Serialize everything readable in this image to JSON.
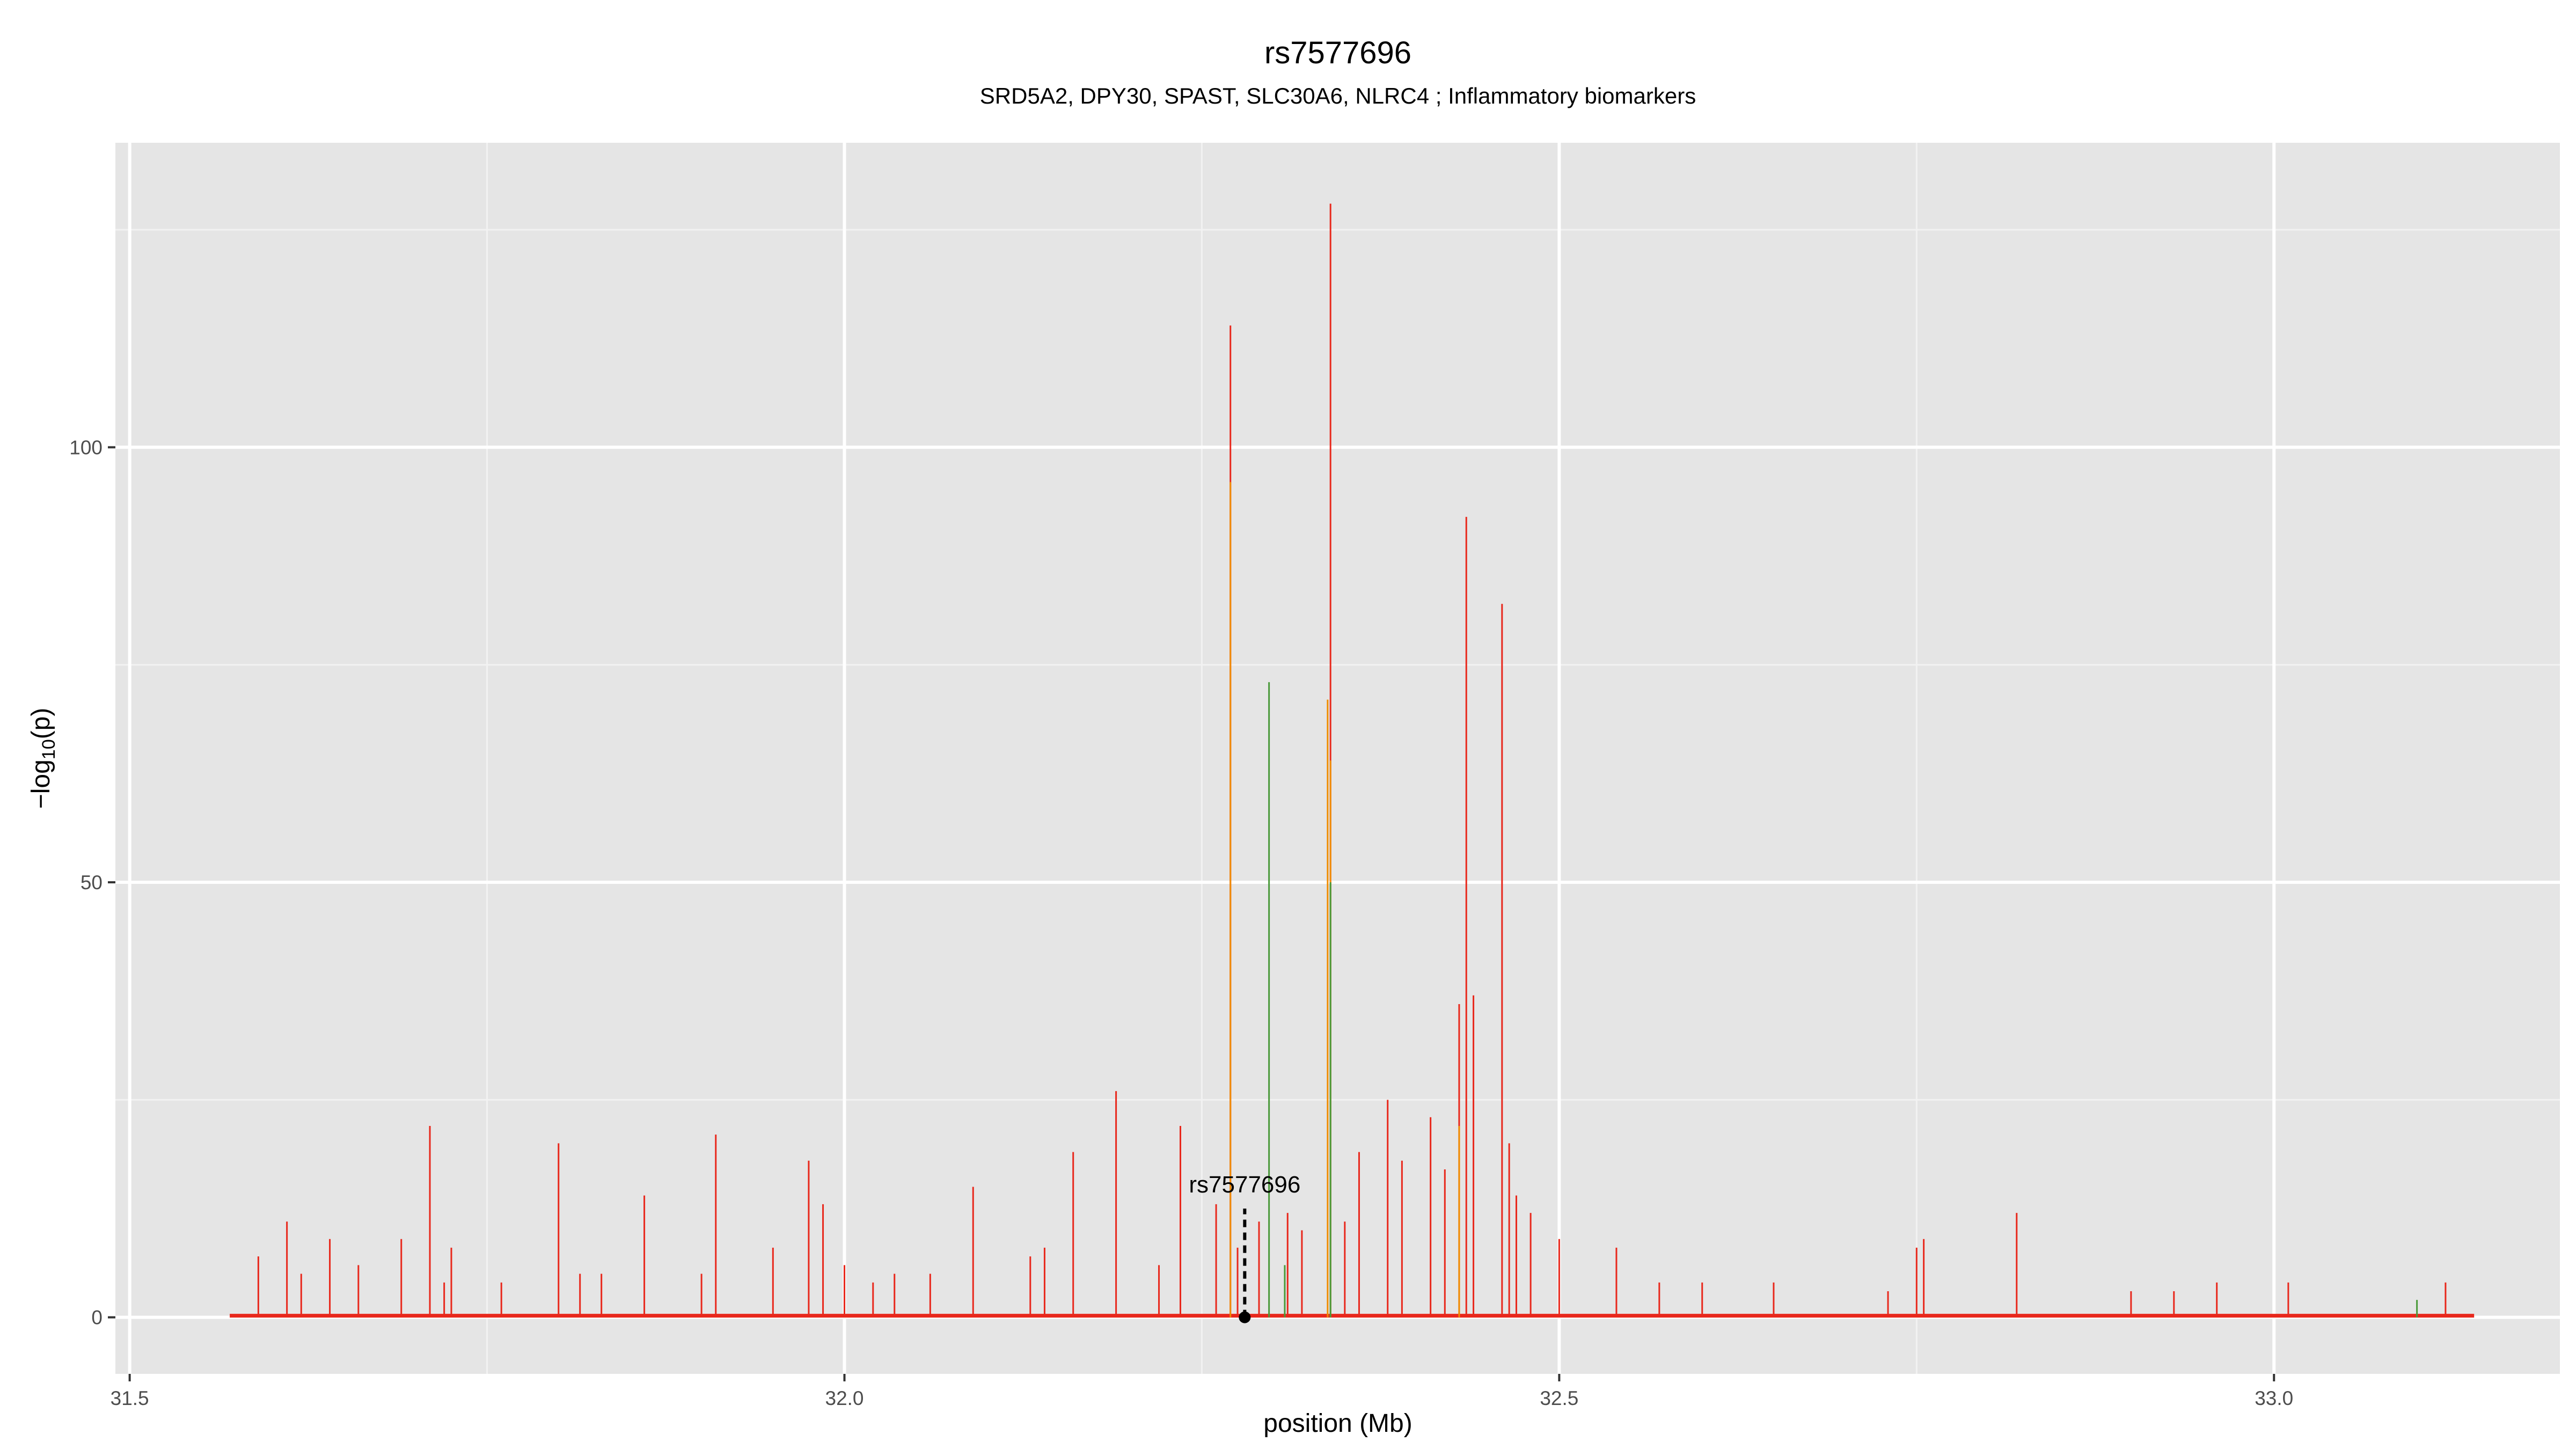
{
  "chart_data": {
    "type": "line",
    "title": "rs7577696",
    "subtitle": "SRD5A2, DPY30, SPAST, SLC30A6, NLRC4 ; Inflammatory biomarkers",
    "xlabel": "position (Mb)",
    "ylabel": "−log10(p)",
    "ylabel_main": "−log",
    "ylabel_sub": "10",
    "ylabel_end": "(p)",
    "xlim": [
      31.49,
      33.2
    ],
    "ylim": [
      -6.5,
      135
    ],
    "x_ticks": [
      31.5,
      32.0,
      32.5,
      33.0
    ],
    "x_tick_labels": [
      "31.5",
      "32.0",
      "32.5",
      "33.0"
    ],
    "y_ticks": [
      0,
      50,
      100
    ],
    "y_tick_labels": [
      "0",
      "50",
      "100"
    ],
    "grid": true,
    "colors": {
      "panel": "#e5e5e5",
      "red": "#e8281c",
      "orange": "#f08c00",
      "green": "#4a9a3a",
      "annotation": "#000000"
    },
    "series": [
      {
        "color": "red",
        "x": [
          31.59,
          31.61,
          31.62,
          31.64,
          31.66,
          31.69,
          31.71,
          31.725,
          31.72,
          31.76,
          31.8,
          31.815,
          31.83,
          31.86,
          31.9,
          31.91,
          31.95,
          31.975,
          31.985,
          32.0,
          32.02,
          32.035,
          32.06,
          32.09,
          32.13,
          32.14,
          32.16,
          32.19,
          32.22,
          32.235,
          32.26,
          32.27,
          32.275,
          32.29,
          32.31,
          32.32,
          32.34,
          32.35,
          32.36,
          32.38,
          32.39,
          32.41,
          32.42,
          32.43,
          32.435,
          32.44,
          32.46,
          32.465,
          32.47,
          32.48,
          32.5,
          32.54,
          32.57,
          32.6,
          32.65,
          32.73,
          32.75,
          32.755,
          32.82,
          32.9,
          32.93,
          32.96,
          33.01,
          33.12
        ],
        "y": [
          7,
          11,
          5,
          9,
          6,
          9,
          22,
          8,
          4,
          4,
          20,
          5,
          5,
          14,
          5,
          21,
          8,
          18,
          13,
          6,
          4,
          5,
          5,
          15,
          7,
          8,
          19,
          26,
          6,
          22,
          13,
          114,
          8,
          11,
          12,
          10,
          128,
          11,
          19,
          25,
          18,
          23,
          17,
          36,
          92,
          37,
          82,
          20,
          14,
          12,
          9,
          8,
          4,
          4,
          4,
          3,
          8,
          9,
          12,
          3,
          3,
          4,
          4,
          4
        ]
      },
      {
        "color": "orange",
        "x": [
          32.27,
          32.338,
          32.34,
          32.43
        ],
        "y": [
          96,
          71,
          64,
          22
        ]
      },
      {
        "color": "green",
        "x": [
          32.297,
          32.308,
          32.34,
          33.1
        ],
        "y": [
          73,
          6,
          50,
          2
        ]
      }
    ],
    "annotation": {
      "label": "rs7577696",
      "x": 32.28,
      "y": 0,
      "line_top": 12.5
    }
  }
}
